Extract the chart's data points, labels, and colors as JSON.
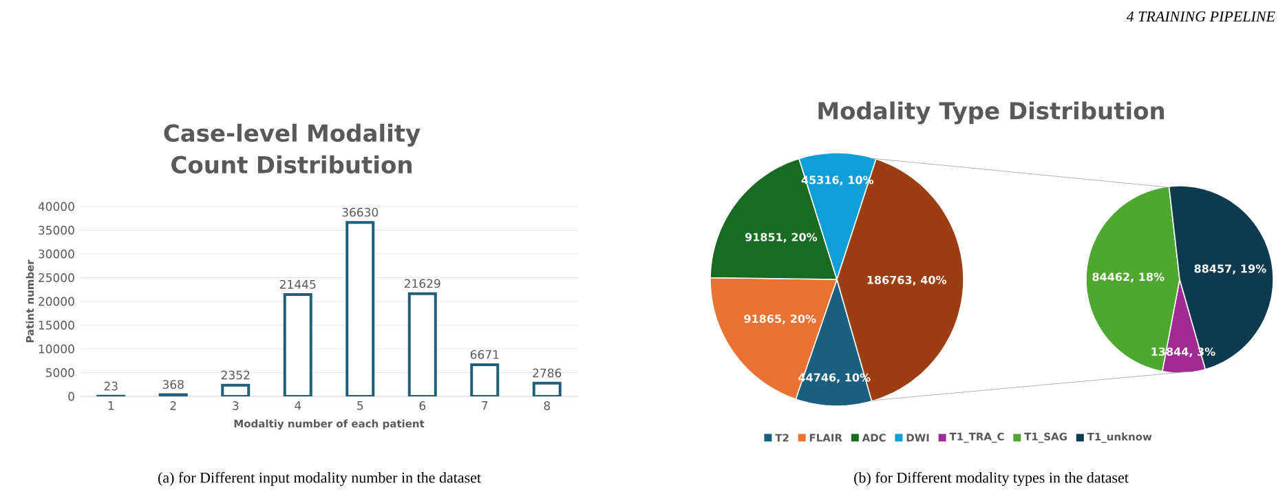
{
  "chart_data": [
    {
      "type": "bar",
      "title": "Case-level Modality Count Distribution",
      "xlabel": "Modaltiy number of each patient",
      "ylabel": "Patint number",
      "categories": [
        "1",
        "2",
        "3",
        "4",
        "5",
        "6",
        "7",
        "8"
      ],
      "values": [
        23,
        368,
        2352,
        21445,
        36630,
        21629,
        6671,
        2786
      ],
      "color": "#1f5f7a",
      "ylim": [
        0,
        40000
      ],
      "yticks": [
        0,
        5000,
        10000,
        15000,
        20000,
        25000,
        30000,
        35000,
        40000
      ],
      "grid": "y",
      "data_labels": true,
      "annotations": [
        "4 TRAINING PIPELINE",
        "(a) for Different input modality number in the dataset"
      ]
    },
    {
      "type": "pie",
      "title": "Modality Type Distribution",
      "categories": [
        "T2",
        "FLAIR",
        "ADC",
        "DWI",
        null
      ],
      "values": [
        44746,
        91865,
        91851,
        45316,
        186763
      ],
      "value_labels": [
        "44746, 10%",
        "91865, 20%",
        "91851, 20%",
        "45316, 10%",
        "186763, 40%"
      ],
      "colors": [
        "#1a5e80",
        "#e97132",
        "#196b24",
        "#0f9ed5",
        "#9b3f12"
      ],
      "legend": "bottom",
      "annotations": [
        "(b) for Different modality types in the dataset"
      ]
    },
    {
      "type": "pie",
      "categories": [
        "T1_TRA_C",
        "T1_SAG",
        "T1_unknow"
      ],
      "values": [
        13844,
        84462,
        88457
      ],
      "value_labels": [
        "13844, 3%",
        "84462, 18%",
        "88457, 19%"
      ],
      "colors": [
        "#a02b93",
        "#4ea72e",
        "#0e3a4e"
      ],
      "legend": "bottom"
    }
  ]
}
